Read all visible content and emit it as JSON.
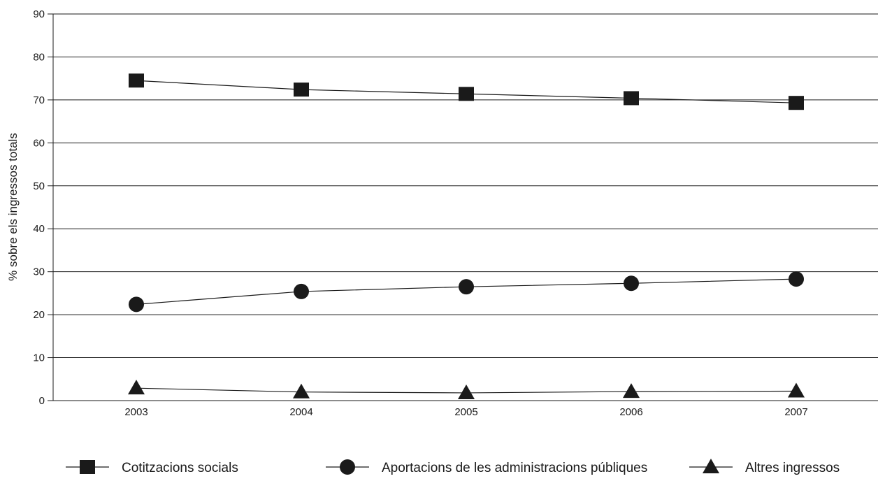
{
  "chart_data": {
    "type": "line",
    "title": "",
    "xlabel": "",
    "ylabel": "% sobre els ingressos totals",
    "categories": [
      "2003",
      "2004",
      "2005",
      "2006",
      "2007"
    ],
    "ylim": [
      0,
      90
    ],
    "yticks": [
      0,
      10,
      20,
      30,
      40,
      50,
      60,
      70,
      80,
      90
    ],
    "grid": "horizontal",
    "legend_position": "bottom",
    "series": [
      {
        "name": "Cotitzacions socials",
        "marker": "square",
        "values": [
          74.5,
          72.4,
          71.4,
          70.4,
          69.3
        ]
      },
      {
        "name": "Aportacions de les administracions públiques",
        "marker": "circle",
        "values": [
          22.4,
          25.4,
          26.5,
          27.3,
          28.3
        ]
      },
      {
        "name": "Altres ingressos",
        "marker": "triangle",
        "values": [
          2.9,
          2.0,
          1.8,
          2.1,
          2.2
        ]
      }
    ],
    "colors": {
      "line": "#1a1a1a",
      "grid": "#1a1a1a",
      "marker": "#1a1a1a"
    }
  }
}
